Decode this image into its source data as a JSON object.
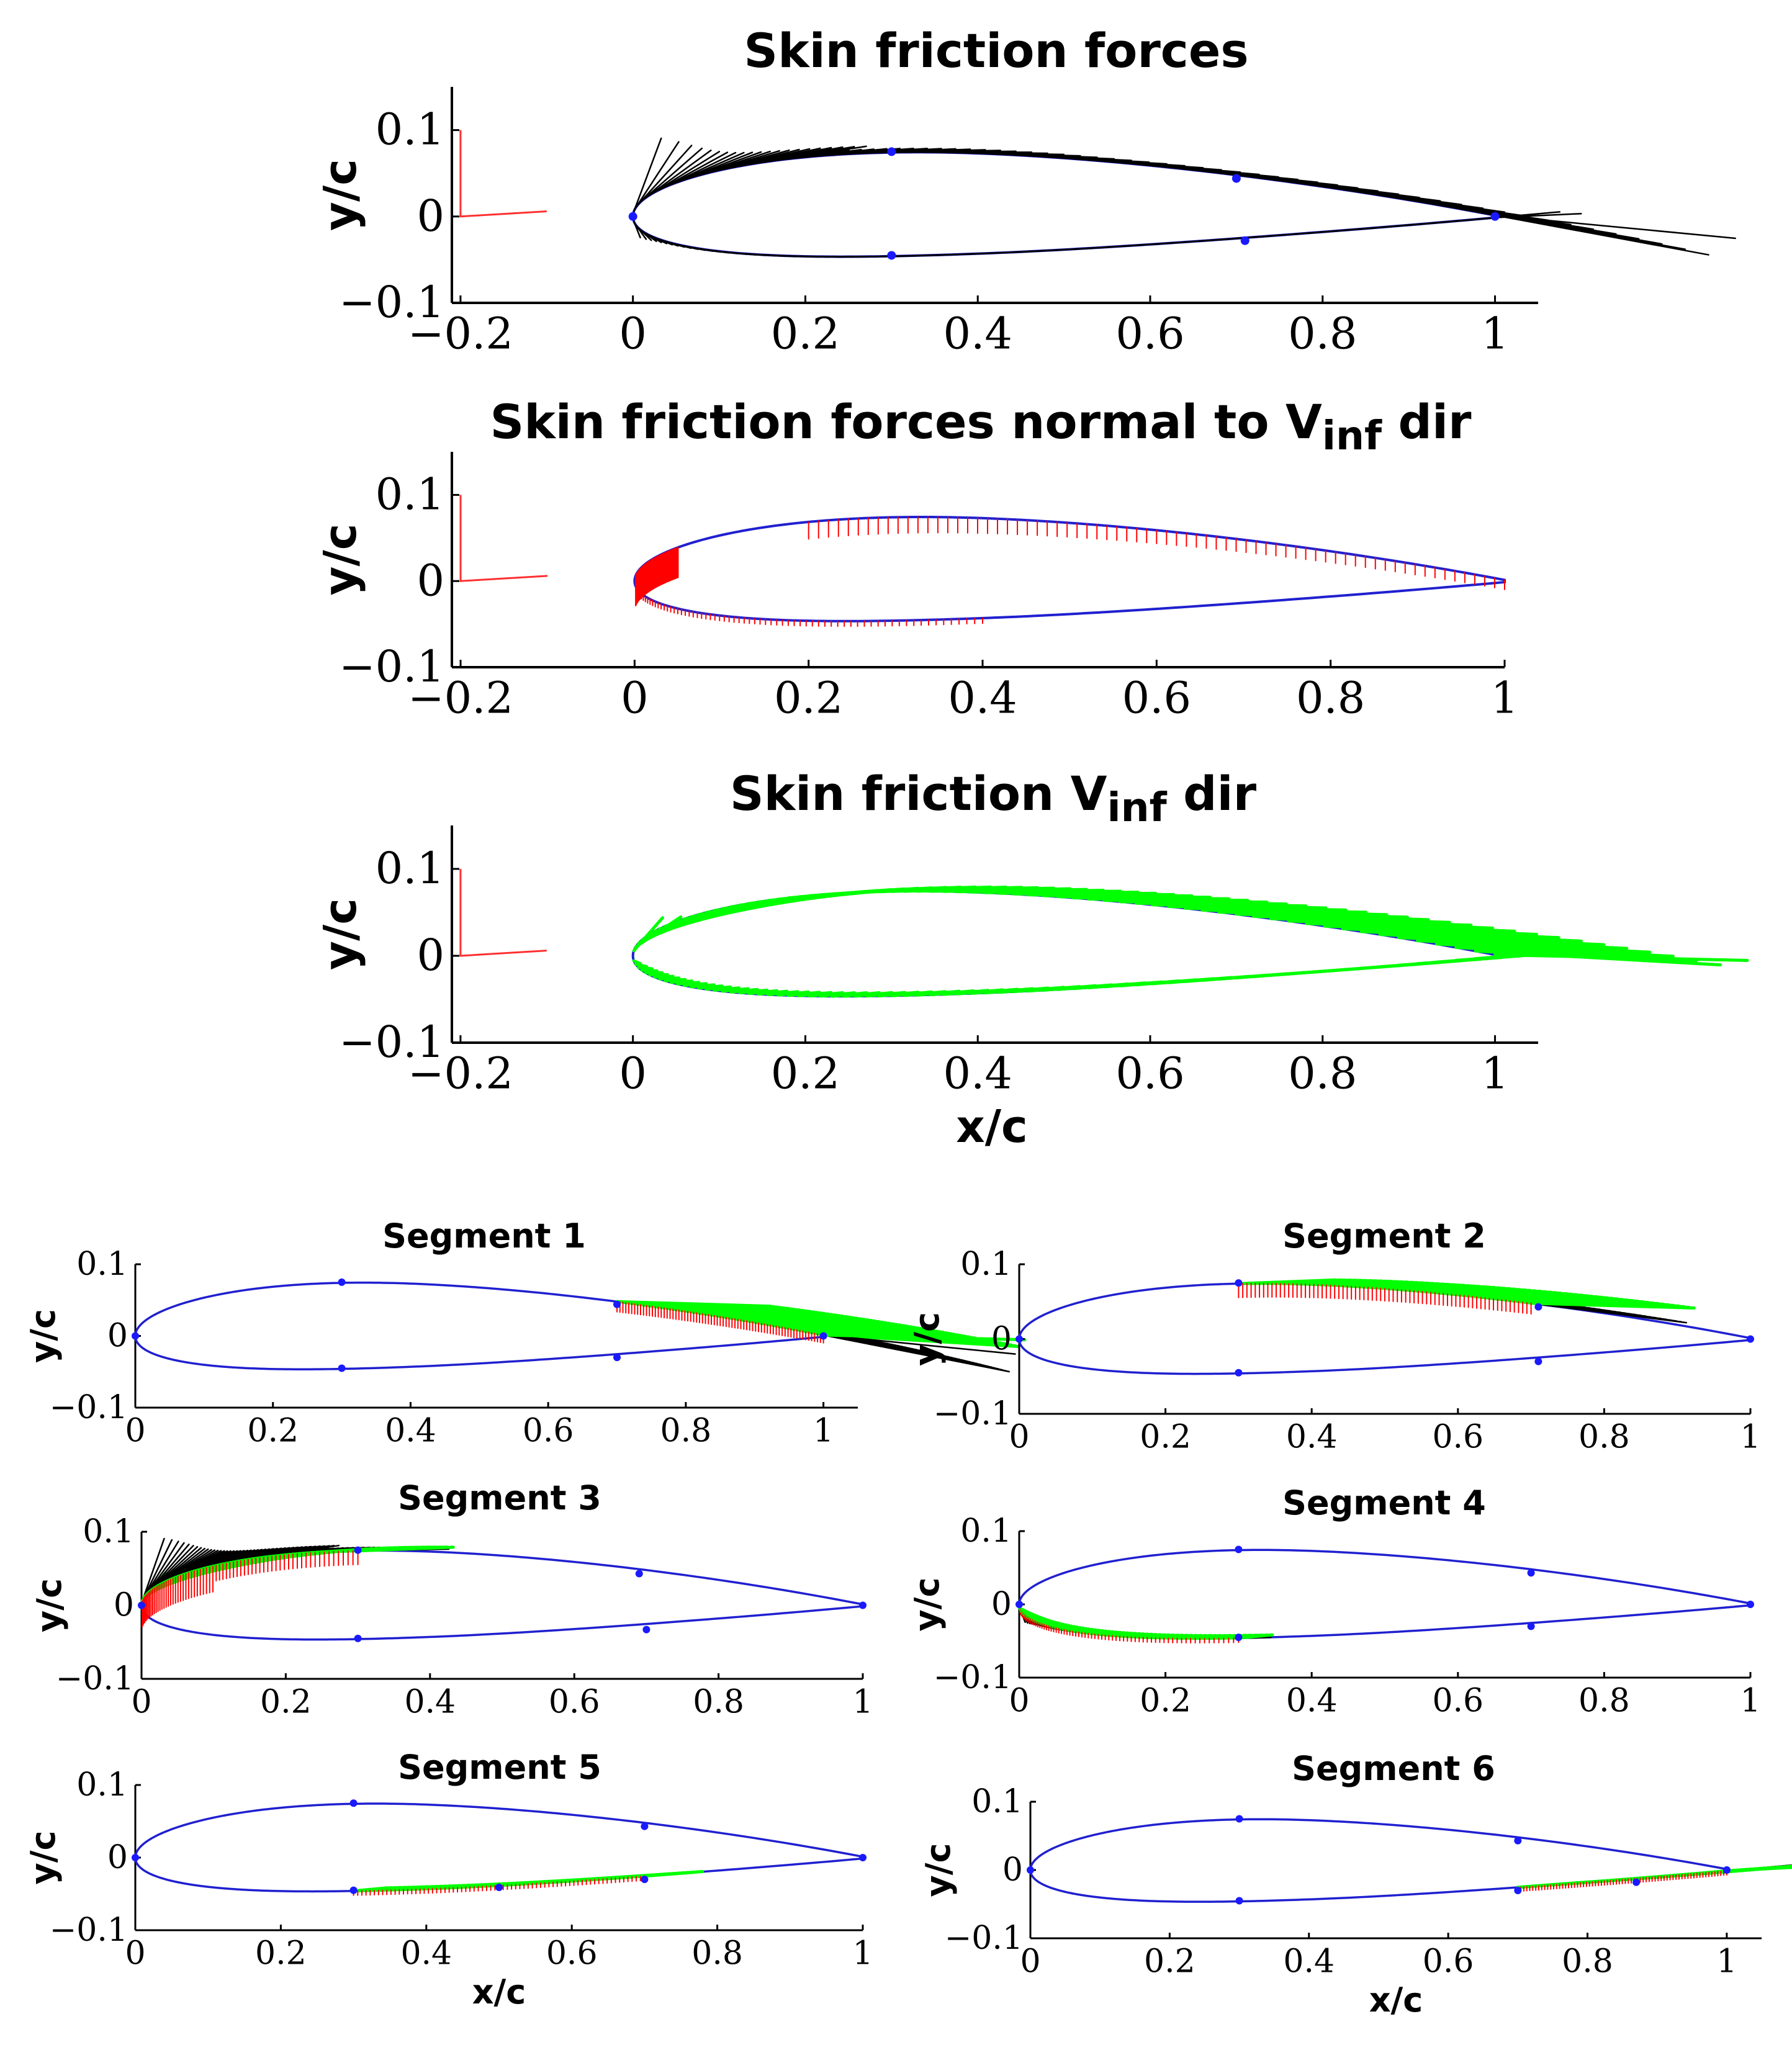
{
  "chart_data": [
    {
      "type": "line",
      "title": "Skin friction forces",
      "title_sub": "",
      "title_suffix": "",
      "xlabel": "",
      "ylabel": "y/c",
      "xlim": [
        -0.21,
        1.05
      ],
      "ylim": [
        -0.1,
        0.15
      ],
      "xticks": [
        -0.2,
        0,
        0.2,
        0.4,
        0.6,
        0.8,
        1
      ],
      "xtick_labels": [
        "−0.2",
        "0",
        "0.2",
        "0.4",
        "0.6",
        "0.8",
        "1"
      ],
      "yticks": [
        -0.1,
        0,
        0.1
      ],
      "ytick_labels": [
        "−0.1",
        "0",
        "0.1"
      ],
      "vector_color": "#000000",
      "vectors": "full",
      "segment_range": [
        0,
        1
      ],
      "markers": [
        [
          0,
          0
        ],
        [
          0.3,
          0.075
        ],
        [
          0.7,
          0.044
        ],
        [
          1,
          0
        ],
        [
          0.3,
          -0.045
        ],
        [
          0.71,
          -0.028
        ]
      ]
    },
    {
      "type": "line",
      "title": "Skin friction forces normal to V",
      "title_sub": "inf",
      "title_suffix": " dir",
      "xlabel": "",
      "ylabel": "y/c",
      "xlim": [
        -0.21,
        1.0
      ],
      "ylim": [
        -0.1,
        0.15
      ],
      "xticks": [
        -0.2,
        0,
        0.2,
        0.4,
        0.6,
        0.8,
        1
      ],
      "xtick_labels": [
        "−0.2",
        "0",
        "0.2",
        "0.4",
        "0.6",
        "0.8",
        "1"
      ],
      "yticks": [
        -0.1,
        0,
        0.1
      ],
      "ytick_labels": [
        "−0.1",
        "0",
        "0.1"
      ],
      "vector_color": "#ff0000",
      "vectors": "normal",
      "segment_range": [
        0,
        1
      ],
      "markers": []
    },
    {
      "type": "line",
      "title": "Skin friction V",
      "title_sub": "inf",
      "title_suffix": " dir",
      "xlabel": "x/c",
      "ylabel": "y/c",
      "xlim": [
        -0.21,
        1.05
      ],
      "ylim": [
        -0.1,
        0.15
      ],
      "xticks": [
        -0.2,
        0,
        0.2,
        0.4,
        0.6,
        0.8,
        1
      ],
      "xtick_labels": [
        "−0.2",
        "0",
        "0.2",
        "0.4",
        "0.6",
        "0.8",
        "1"
      ],
      "yticks": [
        -0.1,
        0,
        0.1
      ],
      "ytick_labels": [
        "−0.1",
        "0",
        "0.1"
      ],
      "vector_color": "#00ff00",
      "vectors": "streamwise",
      "segment_range": [
        0,
        1
      ],
      "markers": []
    },
    {
      "type": "line",
      "title": "Segment 1",
      "xlabel": "",
      "ylabel": "y/c",
      "xlim": [
        0,
        1.05
      ],
      "ylim": [
        -0.1,
        0.1
      ],
      "xticks": [
        0,
        0.2,
        0.4,
        0.6,
        0.8,
        1
      ],
      "xtick_labels": [
        "0",
        "0.2",
        "0.4",
        "0.6",
        "0.8",
        "1"
      ],
      "yticks": [
        -0.1,
        0,
        0.1
      ],
      "ytick_labels": [
        "−0.1",
        "0",
        "0.1"
      ],
      "segment": "upper",
      "segment_range": [
        0.7,
        1.0
      ],
      "markers": [
        [
          0,
          0
        ],
        [
          0.3,
          0.075
        ],
        [
          0.7,
          0.044
        ],
        [
          1,
          0
        ],
        [
          0.3,
          -0.045
        ],
        [
          0.7,
          -0.03
        ]
      ]
    },
    {
      "type": "line",
      "title": "Segment 2",
      "xlabel": "",
      "ylabel": "y/c",
      "xlim": [
        0,
        1.0
      ],
      "ylim": [
        -0.1,
        0.1
      ],
      "xticks": [
        0,
        0.2,
        0.4,
        0.6,
        0.8,
        1
      ],
      "xtick_labels": [
        "0",
        "0.2",
        "0.4",
        "0.6",
        "0.8",
        "1"
      ],
      "yticks": [
        -0.1,
        0,
        0.1
      ],
      "ytick_labels": [
        "−0.1",
        "0",
        "0.1"
      ],
      "segment": "upper",
      "segment_range": [
        0.3,
        0.7
      ],
      "markers": [
        [
          0,
          0
        ],
        [
          0.3,
          0.075
        ],
        [
          0.71,
          0.043
        ],
        [
          1,
          0
        ],
        [
          0.3,
          -0.045
        ],
        [
          0.71,
          -0.03
        ]
      ]
    },
    {
      "type": "line",
      "title": "Segment 3",
      "xlabel": "",
      "ylabel": "y/c",
      "xlim": [
        0,
        1.0
      ],
      "ylim": [
        -0.1,
        0.1
      ],
      "xticks": [
        0,
        0.2,
        0.4,
        0.6,
        0.8,
        1
      ],
      "xtick_labels": [
        "0",
        "0.2",
        "0.4",
        "0.6",
        "0.8",
        "1"
      ],
      "yticks": [
        -0.1,
        0,
        0.1
      ],
      "ytick_labels": [
        "−0.1",
        "0",
        "0.1"
      ],
      "segment": "upper",
      "segment_range": [
        0.0,
        0.3
      ],
      "markers": [
        [
          0,
          0
        ],
        [
          0.3,
          0.075
        ],
        [
          0.69,
          0.043
        ],
        [
          1,
          0
        ],
        [
          0.3,
          -0.045
        ],
        [
          0.7,
          -0.033
        ]
      ]
    },
    {
      "type": "line",
      "title": "Segment 4",
      "xlabel": "",
      "ylabel": "y/c",
      "xlim": [
        0,
        1.0
      ],
      "ylim": [
        -0.1,
        0.1
      ],
      "xticks": [
        0,
        0.2,
        0.4,
        0.6,
        0.8,
        1
      ],
      "xtick_labels": [
        "0",
        "0.2",
        "0.4",
        "0.6",
        "0.8",
        "1"
      ],
      "yticks": [
        -0.1,
        0,
        0.1
      ],
      "ytick_labels": [
        "−0.1",
        "0",
        "0.1"
      ],
      "segment": "lower",
      "segment_range": [
        0.0,
        0.3
      ],
      "markers": [
        [
          0,
          0
        ],
        [
          0.3,
          0.075
        ],
        [
          0.7,
          0.043
        ],
        [
          1,
          0
        ],
        [
          0.3,
          -0.045
        ],
        [
          0.7,
          -0.03
        ]
      ]
    },
    {
      "type": "line",
      "title": "Segment 5",
      "xlabel": "x/c",
      "ylabel": "y/c",
      "xlim": [
        0,
        1.0
      ],
      "ylim": [
        -0.1,
        0.1
      ],
      "xticks": [
        0,
        0.2,
        0.4,
        0.6,
        0.8,
        1
      ],
      "xtick_labels": [
        "0",
        "0.2",
        "0.4",
        "0.6",
        "0.8",
        "1"
      ],
      "yticks": [
        -0.1,
        0,
        0.1
      ],
      "ytick_labels": [
        "−0.1",
        "0",
        "0.1"
      ],
      "segment": "lower",
      "segment_range": [
        0.3,
        0.7
      ],
      "markers": [
        [
          0,
          0
        ],
        [
          0.3,
          0.075
        ],
        [
          0.7,
          0.043
        ],
        [
          1,
          0
        ],
        [
          0.3,
          -0.045
        ],
        [
          0.5,
          -0.041
        ],
        [
          0.7,
          -0.03
        ]
      ]
    },
    {
      "type": "line",
      "title": "Segment 6",
      "xlabel": "x/c",
      "ylabel": "y/c",
      "xlim": [
        0,
        1.05
      ],
      "ylim": [
        -0.1,
        0.1
      ],
      "xticks": [
        0,
        0.2,
        0.4,
        0.6,
        0.8,
        1
      ],
      "xtick_labels": [
        "0",
        "0.2",
        "0.4",
        "0.6",
        "0.8",
        "1"
      ],
      "yticks": [
        -0.1,
        0,
        0.1
      ],
      "ytick_labels": [
        "−0.1",
        "0",
        "0.1"
      ],
      "segment": "lower",
      "segment_range": [
        0.7,
        1.0
      ],
      "markers": [
        [
          0,
          0
        ],
        [
          0.3,
          0.075
        ],
        [
          0.7,
          0.043
        ],
        [
          1,
          0
        ],
        [
          0.3,
          -0.045
        ],
        [
          0.7,
          -0.03
        ],
        [
          0.87,
          -0.018
        ],
        [
          1,
          0
        ]
      ]
    }
  ],
  "colors": {
    "airfoil": "#2020d0",
    "marker": "#1a1aff",
    "axes": "#000000",
    "total_vectors": "#000000",
    "normal_vectors": "#ff0000",
    "streamwise_vectors": "#00ff00",
    "reference_axes": "#ff3030"
  }
}
